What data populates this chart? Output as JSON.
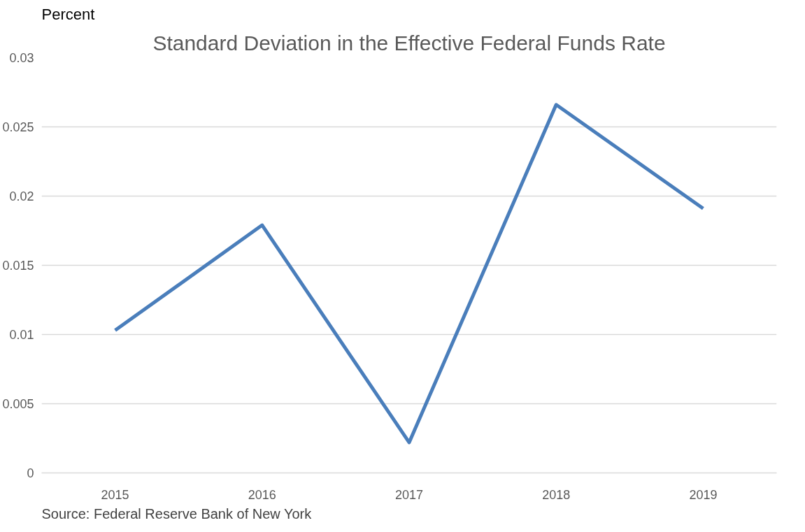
{
  "chart_data": {
    "type": "line",
    "title": "Standard Deviation in the Effective Federal Funds Rate",
    "ylabel": "Percent",
    "categories": [
      "2015",
      "2016",
      "2017",
      "2018",
      "2019"
    ],
    "series": [
      {
        "color": "#4a7ebb",
        "values": [
          0.0103,
          0.0179,
          0.0022,
          0.0266,
          0.0191
        ]
      }
    ],
    "ylim": [
      0,
      0.03
    ],
    "yticks": [
      0,
      0.005,
      0.01,
      0.015,
      0.02,
      0.025,
      0.03
    ],
    "grid": "y",
    "marker": "none",
    "line_style": "solid",
    "annotations": [
      "Source:  Federal Reserve Bank of New York"
    ]
  }
}
